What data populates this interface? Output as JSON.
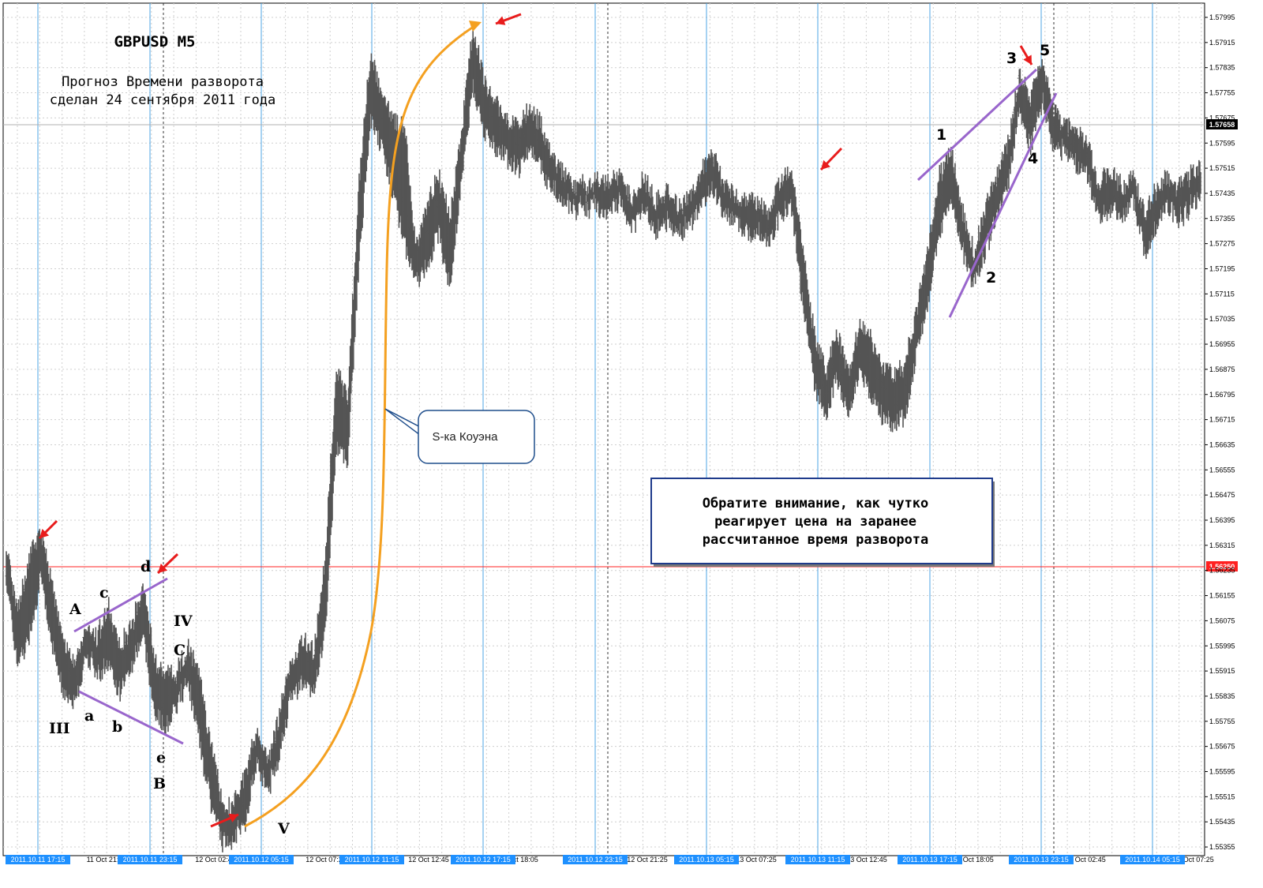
{
  "chart_data": {
    "type": "candlestick",
    "symbol_label": "GBPUSD  M5",
    "forecast_note": [
      "Прогноз Времени разворота",
      "сделан 24 сентября 2011 года"
    ],
    "ylim": [
      1.5532,
      1.5805
    ],
    "y_ticks": [
      "1.57995",
      "1.57915",
      "1.57835",
      "1.57755",
      "1.57675",
      "1.57595",
      "1.57515",
      "1.57435",
      "1.57355",
      "1.57275",
      "1.57195",
      "1.57115",
      "1.57035",
      "1.56955",
      "1.56875",
      "1.56795",
      "1.56715",
      "1.56635",
      "1.56555",
      "1.56475",
      "1.56395",
      "1.56315",
      "1.56235",
      "1.56155",
      "1.56075",
      "1.55995",
      "1.55915",
      "1.55835",
      "1.55755",
      "1.55675",
      "1.55595",
      "1.55515",
      "1.55435",
      "1.55355"
    ],
    "current_price": "1.57658",
    "level_price": "1.56250",
    "x_labels_plain": [
      "11 Oct 18:05",
      "11 Oct 21:25",
      "12 Oct 02:45",
      "12 Oct 07:25",
      "12 Oct 12:45",
      "12 Oct 18:05",
      "12 Oct 21:25",
      "13 Oct 02:45",
      "13 Oct 07:25",
      "13 Oct 12:45",
      "13 Oct 18:05",
      "13 Oct 21:25",
      "14 Oct 02:45",
      "14 Oct 07:25"
    ],
    "x_labels_marked": [
      "2011.10.11 17:15",
      "2011.10.11 23:15",
      "2011.10.12 05:15",
      "2011.10.12 11:15",
      "2011.10.12 17:15",
      "2011.10.12 23:15",
      "2011.10.13 05:15",
      "2011.10.13 11:15",
      "2011.10.13 17:15",
      "2011.10.13 23:15",
      "2011.10.14 05:15"
    ],
    "close_path": [
      [
        1.5623,
        1.5633,
        1.5618
      ],
      [
        1.5606,
        1.5614,
        1.559
      ],
      [
        1.562,
        1.563,
        1.56
      ],
      [
        1.5632,
        1.564,
        1.5618
      ],
      [
        1.5613,
        1.5622,
        1.5598
      ],
      [
        1.5598,
        1.5605,
        1.5582
      ],
      [
        1.559,
        1.5596,
        1.5578
      ],
      [
        1.5604,
        1.5608,
        1.5594
      ],
      [
        1.5596,
        1.5606,
        1.5588
      ],
      [
        1.561,
        1.5614,
        1.559
      ],
      [
        1.5595,
        1.5602,
        1.5582
      ],
      [
        1.5602,
        1.5608,
        1.559
      ],
      [
        1.5614,
        1.5622,
        1.56
      ],
      [
        1.5588,
        1.5598,
        1.5576
      ],
      [
        1.558,
        1.5594,
        1.557
      ],
      [
        1.5588,
        1.5594,
        1.5578
      ],
      [
        1.5594,
        1.5602,
        1.5585
      ],
      [
        1.5584,
        1.5592,
        1.5565
      ],
      [
        1.556,
        1.557,
        1.5546
      ],
      [
        1.554,
        1.5552,
        1.5534
      ],
      [
        1.5545,
        1.5552,
        1.5536
      ],
      [
        1.5551,
        1.5562,
        1.554
      ],
      [
        1.5568,
        1.5574,
        1.556
      ],
      [
        1.556,
        1.5566,
        1.555
      ],
      [
        1.5572,
        1.558,
        1.5562
      ],
      [
        1.559,
        1.5596,
        1.558
      ],
      [
        1.56,
        1.5604,
        1.5585
      ],
      [
        1.5593,
        1.56,
        1.5582
      ],
      [
        1.5615,
        1.563,
        1.56
      ],
      [
        1.568,
        1.569,
        1.566
      ],
      [
        1.5672,
        1.5682,
        1.5656
      ],
      [
        1.5738,
        1.575,
        1.572
      ],
      [
        1.5782,
        1.579,
        1.5764
      ],
      [
        1.577,
        1.5778,
        1.5755
      ],
      [
        1.5752,
        1.577,
        1.574
      ],
      [
        1.574,
        1.5768,
        1.5725
      ],
      [
        1.5722,
        1.573,
        1.5712
      ],
      [
        1.573,
        1.5744,
        1.5718
      ],
      [
        1.5742,
        1.5752,
        1.5728
      ],
      [
        1.5728,
        1.5738,
        1.571
      ],
      [
        1.5758,
        1.5766,
        1.5745
      ],
      [
        1.579,
        1.58,
        1.5775
      ],
      [
        1.5772,
        1.5782,
        1.576
      ],
      [
        1.5768,
        1.5776,
        1.5755
      ],
      [
        1.5762,
        1.577,
        1.5752
      ],
      [
        1.576,
        1.5768,
        1.5748
      ],
      [
        1.5766,
        1.5774,
        1.5755
      ],
      [
        1.576,
        1.5768,
        1.5748
      ],
      [
        1.5752,
        1.5758,
        1.5742
      ],
      [
        1.5746,
        1.5752,
        1.5738
      ],
      [
        1.5744,
        1.575,
        1.5736
      ],
      [
        1.5742,
        1.5748,
        1.5736
      ],
      [
        1.5746,
        1.5752,
        1.5736
      ],
      [
        1.5741,
        1.575,
        1.5734
      ],
      [
        1.5745,
        1.5752,
        1.5738
      ],
      [
        1.5738,
        1.5745,
        1.573
      ],
      [
        1.5744,
        1.5752,
        1.5736
      ],
      [
        1.5736,
        1.5744,
        1.5728
      ],
      [
        1.574,
        1.5748,
        1.5732
      ],
      [
        1.5734,
        1.5742,
        1.5728
      ],
      [
        1.5738,
        1.5745,
        1.573
      ],
      [
        1.5744,
        1.5752,
        1.5736
      ],
      [
        1.5754,
        1.576,
        1.5742
      ],
      [
        1.5744,
        1.575,
        1.5734
      ],
      [
        1.574,
        1.5746,
        1.5732
      ],
      [
        1.5736,
        1.5744,
        1.5728
      ],
      [
        1.5738,
        1.5745,
        1.573
      ],
      [
        1.5732,
        1.574,
        1.5724
      ],
      [
        1.5742,
        1.575,
        1.5734
      ],
      [
        1.5748,
        1.5754,
        1.5736
      ],
      [
        1.572,
        1.5728,
        1.5705
      ],
      [
        1.5695,
        1.5702,
        1.568
      ],
      [
        1.568,
        1.569,
        1.567
      ],
      [
        1.569,
        1.5702,
        1.5682
      ],
      [
        1.5678,
        1.569,
        1.567
      ],
      [
        1.5695,
        1.5705,
        1.5684
      ],
      [
        1.5688,
        1.57,
        1.5676
      ],
      [
        1.5682,
        1.5692,
        1.567
      ],
      [
        1.5676,
        1.5688,
        1.5666
      ],
      [
        1.5682,
        1.5692,
        1.567
      ],
      [
        1.57,
        1.571,
        1.569
      ],
      [
        1.572,
        1.5728,
        1.5705
      ],
      [
        1.574,
        1.5752,
        1.5728
      ],
      [
        1.5755,
        1.576,
        1.574
      ],
      [
        1.5732,
        1.574,
        1.5722
      ],
      [
        1.572,
        1.5728,
        1.5712
      ],
      [
        1.573,
        1.5742,
        1.5722
      ],
      [
        1.5744,
        1.5752,
        1.5734
      ],
      [
        1.5755,
        1.5762,
        1.5742
      ],
      [
        1.578,
        1.5784,
        1.5768
      ],
      [
        1.577,
        1.5778,
        1.5756
      ],
      [
        1.5784,
        1.5788,
        1.577
      ],
      [
        1.5766,
        1.5774,
        1.5755
      ],
      [
        1.5762,
        1.5768,
        1.5754
      ],
      [
        1.576,
        1.5766,
        1.575
      ],
      [
        1.5756,
        1.5764,
        1.5746
      ],
      [
        1.574,
        1.5748,
        1.5732
      ],
      [
        1.5744,
        1.5754,
        1.5736
      ],
      [
        1.574,
        1.5748,
        1.5732
      ],
      [
        1.5746,
        1.5752,
        1.5738
      ],
      [
        1.573,
        1.574,
        1.5722
      ],
      [
        1.5738,
        1.5748,
        1.573
      ],
      [
        1.5744,
        1.5752,
        1.5736
      ],
      [
        1.574,
        1.5748,
        1.5732
      ],
      [
        1.5744,
        1.5752,
        1.5736
      ],
      [
        1.5748,
        1.5754,
        1.574
      ]
    ],
    "annotations": [
      "A",
      "c",
      "d",
      "IV",
      "C",
      "III",
      "a",
      "b",
      "e",
      "B",
      "V",
      "1",
      "2",
      "3",
      "4",
      "5"
    ],
    "callout_label": "S-ка Коуэна",
    "note_box": [
      "Обратите внимание, как чутко",
      "реагирует цена на заранее",
      "рассчитанное время разворота"
    ]
  }
}
